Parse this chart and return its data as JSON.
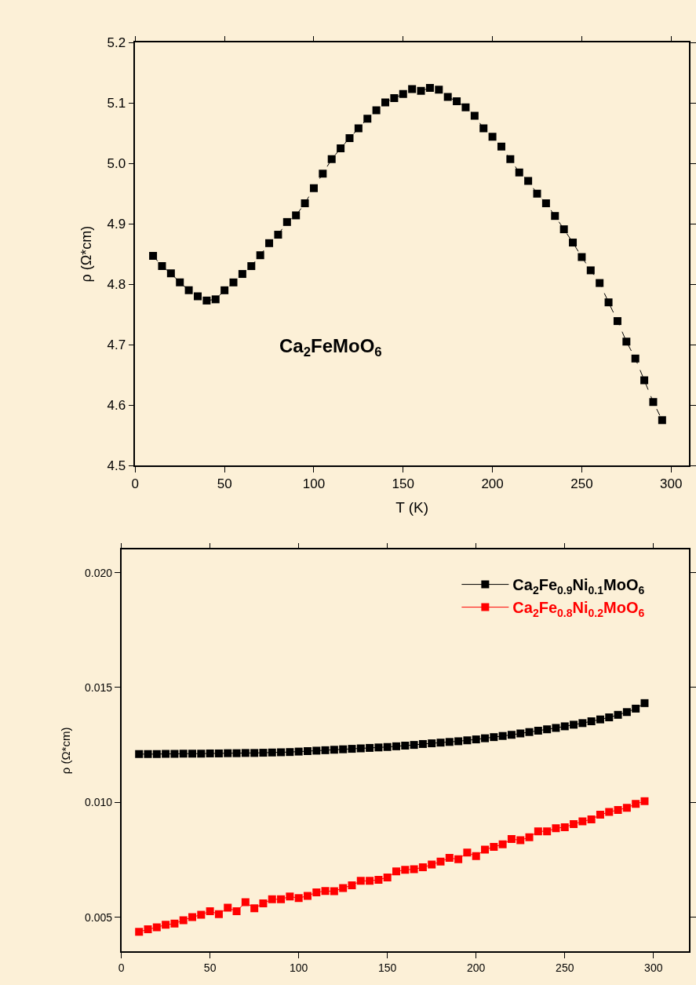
{
  "chart_data": [
    {
      "type": "line",
      "xlabel": "T (K)",
      "ylabel": "ρ (Ω*cm)",
      "annotations": [
        "Ca$_{2}$FeMoO$_{6}$"
      ],
      "marker": "square",
      "line_style": "dashed",
      "grid": false,
      "legend": false,
      "xlim": [
        0,
        310
      ],
      "xticks": [
        0,
        50,
        100,
        150,
        200,
        250,
        300
      ],
      "ylim": [
        4.5,
        5.2
      ],
      "yticks": [
        4.5,
        4.6,
        4.7,
        4.8,
        4.9,
        {
          "value": 5,
          "label": "5.0"
        },
        5.1,
        5.2
      ],
      "x": [
        10,
        15,
        20,
        25,
        30,
        35,
        40,
        45,
        50,
        55,
        60,
        65,
        70,
        75,
        80,
        85,
        90,
        95,
        100,
        105,
        110,
        115,
        120,
        125,
        130,
        135,
        140,
        145,
        150,
        155,
        160,
        165,
        170,
        175,
        180,
        185,
        190,
        195,
        200,
        205,
        210,
        215,
        220,
        225,
        230,
        235,
        240,
        245,
        250,
        255,
        260,
        265,
        270,
        275,
        280,
        285,
        290,
        295
      ],
      "series": [
        {
          "color": "#000000",
          "values": [
            4.847,
            4.83,
            4.818,
            4.803,
            4.79,
            4.78,
            4.773,
            4.775,
            4.79,
            4.803,
            4.817,
            4.83,
            4.848,
            4.868,
            4.882,
            4.903,
            4.914,
            4.934,
            4.959,
            4.983,
            5.007,
            5.025,
            5.042,
            5.058,
            5.074,
            5.088,
            5.101,
            5.108,
            5.115,
            5.123,
            5.12,
            5.125,
            5.122,
            5.11,
            5.103,
            5.093,
            5.079,
            5.058,
            5.044,
            5.028,
            5.007,
            4.985,
            4.971,
            4.95,
            4.934,
            4.913,
            4.891,
            4.869,
            4.845,
            4.823,
            4.802,
            4.77,
            4.739,
            4.705,
            4.677,
            4.641,
            4.605,
            4.575
          ]
        }
      ]
    },
    {
      "type": "line",
      "ylabel": "ρ (Ω*cm)",
      "marker": "square",
      "line_style": "solid",
      "grid": false,
      "legend": "top right",
      "xlim": [
        0,
        320
      ],
      "xticks": [
        0,
        50,
        100,
        150,
        200,
        250,
        300
      ],
      "ylim": [
        0.0035,
        0.021
      ],
      "yticks": [
        0.005,
        {
          "value": 0.01,
          "label": "0.010"
        },
        0.015,
        {
          "value": 0.02,
          "label": "0.020"
        }
      ],
      "x": [
        10,
        15,
        20,
        25,
        30,
        35,
        40,
        45,
        50,
        55,
        60,
        65,
        70,
        75,
        80,
        85,
        90,
        95,
        100,
        105,
        110,
        115,
        120,
        125,
        130,
        135,
        140,
        145,
        150,
        155,
        160,
        165,
        170,
        175,
        180,
        185,
        190,
        195,
        200,
        205,
        210,
        215,
        220,
        225,
        230,
        235,
        240,
        245,
        250,
        255,
        260,
        265,
        270,
        275,
        280,
        285,
        290,
        295
      ],
      "series": [
        {
          "name": "Ca$_{2}$Fe$_{0.9}$Ni$_{0.1}$MoO$_{6}$",
          "color": "#000000",
          "values": [
            0.0121,
            0.0121,
            0.0121,
            0.01211,
            0.01211,
            0.01212,
            0.01212,
            0.01212,
            0.01213,
            0.01213,
            0.01214,
            0.01214,
            0.01215,
            0.01215,
            0.01216,
            0.01217,
            0.01218,
            0.01219,
            0.01221,
            0.01223,
            0.01225,
            0.01227,
            0.01229,
            0.01231,
            0.01233,
            0.01235,
            0.01237,
            0.01239,
            0.01241,
            0.01244,
            0.01247,
            0.0125,
            0.01254,
            0.01257,
            0.0126,
            0.01263,
            0.01266,
            0.0127,
            0.01274,
            0.01279,
            0.01284,
            0.01289,
            0.01294,
            0.013,
            0.01306,
            0.01312,
            0.01318,
            0.01324,
            0.01331,
            0.01338,
            0.01345,
            0.01353,
            0.01361,
            0.0137,
            0.01381,
            0.01393,
            0.01408,
            0.01432
          ]
        },
        {
          "name": "Ca$_{2}$Fe$_{0.8}$Ni$_{0.2}$MoO$_{6}$",
          "color": "#ff0000",
          "values": [
            0.00436,
            0.00447,
            0.00456,
            0.00467,
            0.00472,
            0.00487,
            0.005,
            0.00511,
            0.00526,
            0.00513,
            0.00541,
            0.00526,
            0.00565,
            0.00539,
            0.0056,
            0.00578,
            0.00578,
            0.0059,
            0.00583,
            0.00593,
            0.00608,
            0.00614,
            0.00613,
            0.00627,
            0.00639,
            0.00658,
            0.00658,
            0.00663,
            0.00673,
            0.00699,
            0.00706,
            0.00709,
            0.00717,
            0.00729,
            0.00742,
            0.00758,
            0.00752,
            0.00781,
            0.00766,
            0.00794,
            0.00806,
            0.00817,
            0.0084,
            0.00835,
            0.00848,
            0.00874,
            0.00874,
            0.00887,
            0.00892,
            0.00905,
            0.00917,
            0.00926,
            0.00946,
            0.00958,
            0.00967,
            0.00976,
            0.00993,
            0.01005
          ]
        }
      ]
    }
  ]
}
